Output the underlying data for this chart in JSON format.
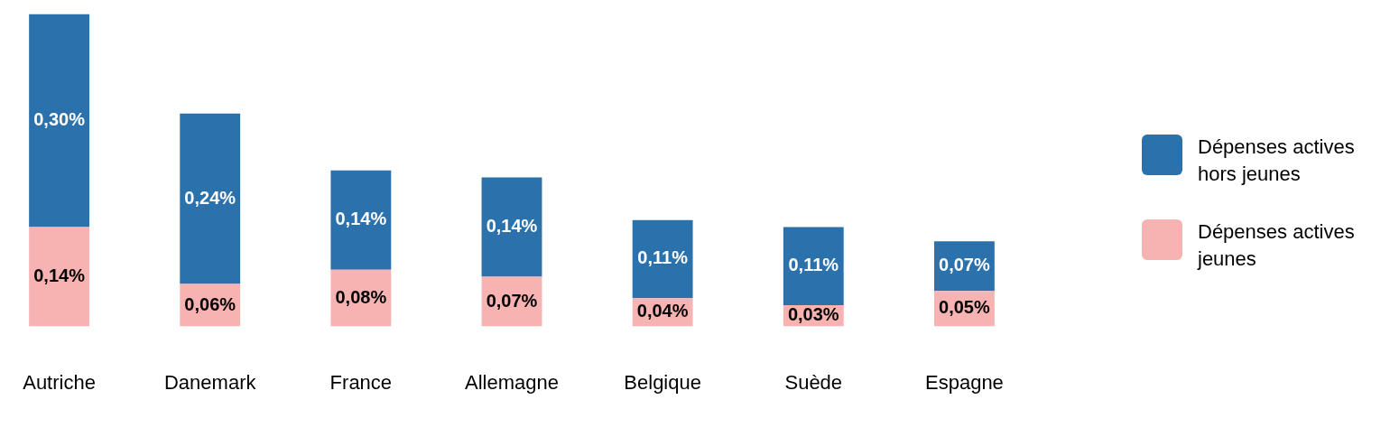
{
  "chart_data": {
    "type": "bar",
    "stacked": true,
    "categories": [
      "Autriche",
      "Danemark",
      "France",
      "Allemagne",
      "Belgique",
      "Suède",
      "Espagne"
    ],
    "legend": "right",
    "series": [
      {
        "name": "Dépenses actives jeunes",
        "color": "#f7b3b1",
        "values": [
          0.14,
          0.06,
          0.08,
          0.07,
          0.04,
          0.03,
          0.05
        ],
        "value_labels": [
          "0,14%",
          "0,06%",
          "0,08%",
          "0,07%",
          "0,04%",
          "0,03%",
          "0,05%"
        ]
      },
      {
        "name": "Dépenses actives hors jeunes",
        "color": "#2b71ab",
        "values": [
          0.3,
          0.24,
          0.14,
          0.14,
          0.11,
          0.11,
          0.07
        ],
        "value_labels": [
          "0,30%",
          "0,24%",
          "0,14%",
          "0,14%",
          "0,11%",
          "0,11%",
          "0,07%"
        ]
      }
    ]
  }
}
